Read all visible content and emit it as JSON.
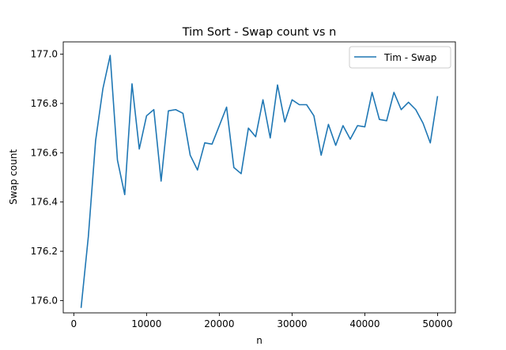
{
  "chart_data": {
    "type": "line",
    "title": "Tim Sort - Swap count vs n",
    "xlabel": "n",
    "ylabel": "Swap count",
    "xlim": [
      -1450,
      52450
    ],
    "ylim": [
      175.95,
      177.05
    ],
    "xticks": [
      0,
      10000,
      20000,
      30000,
      40000,
      50000
    ],
    "xtick_labels": [
      "0",
      "10000",
      "20000",
      "30000",
      "40000",
      "50000"
    ],
    "yticks": [
      176.0,
      176.2,
      176.4,
      176.6,
      176.8,
      177.0
    ],
    "ytick_labels": [
      "176.0",
      "176.2",
      "176.4",
      "176.6",
      "176.8",
      "177.0"
    ],
    "grid": false,
    "legend_position": "top-right",
    "color": "#1f77b4",
    "series": [
      {
        "name": "Tim - Swap",
        "x": [
          1000,
          2000,
          3000,
          4000,
          5000,
          6000,
          7000,
          8000,
          9000,
          10000,
          11000,
          12000,
          13000,
          14000,
          15000,
          16000,
          17000,
          18000,
          19000,
          20000,
          21000,
          22000,
          23000,
          24000,
          25000,
          26000,
          27000,
          28000,
          29000,
          30000,
          31000,
          32000,
          33000,
          34000,
          35000,
          36000,
          37000,
          38000,
          39000,
          40000,
          41000,
          42000,
          43000,
          44000,
          45000,
          46000,
          47000,
          48000,
          49000,
          50000
        ],
        "y": [
          175.97,
          176.26,
          176.65,
          176.86,
          176.995,
          176.57,
          176.43,
          176.88,
          176.615,
          176.75,
          176.775,
          176.485,
          176.77,
          176.775,
          176.76,
          176.59,
          176.53,
          176.64,
          176.635,
          176.71,
          176.785,
          176.54,
          176.515,
          176.7,
          176.665,
          176.815,
          176.66,
          176.875,
          176.725,
          176.815,
          176.795,
          176.795,
          176.75,
          176.59,
          176.715,
          176.63,
          176.71,
          176.655,
          176.71,
          176.705,
          176.845,
          176.735,
          176.73,
          176.845,
          176.775,
          176.805,
          176.775,
          176.72,
          176.64,
          176.83
        ]
      }
    ]
  }
}
